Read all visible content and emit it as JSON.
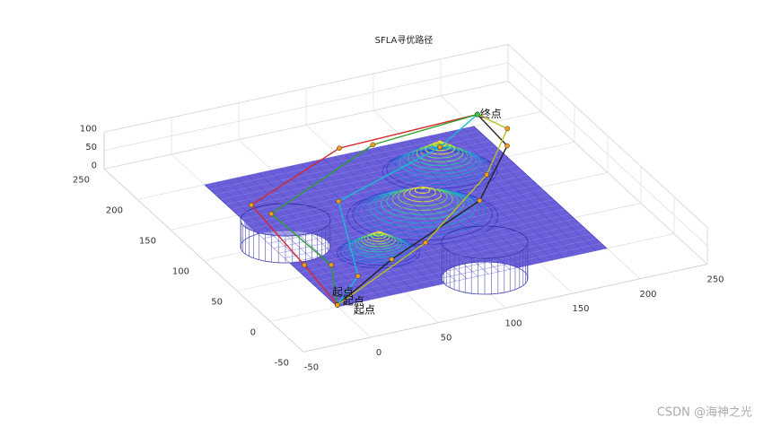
{
  "chart_data": {
    "type": "surface3d",
    "title": "SFLA寻优路径",
    "xlim": [
      -50,
      250
    ],
    "ylim": [
      -50,
      250
    ],
    "zlim": [
      0,
      100
    ],
    "xticks": [
      -50,
      0,
      50,
      100,
      150,
      200,
      250
    ],
    "yticks": [
      -50,
      0,
      50,
      100,
      150,
      200,
      250
    ],
    "zticks": [
      0,
      50,
      100
    ],
    "grid": true,
    "annotations": [
      "终点",
      "起点",
      "起点",
      "起点"
    ],
    "series": [
      {
        "color": "#d62728",
        "x": [
          0,
          5,
          10,
          100,
          205
        ],
        "y": [
          0,
          60,
          150,
          200,
          205
        ],
        "z": [
          5,
          10,
          20,
          20,
          20
        ]
      },
      {
        "color": "#2ca02c",
        "x": [
          0,
          20,
          15,
          120,
          205
        ],
        "y": [
          0,
          50,
          130,
          190,
          205
        ],
        "z": [
          5,
          15,
          25,
          30,
          20
        ]
      },
      {
        "color": "#222222",
        "x": [
          0,
          60,
          150,
          200,
          205
        ],
        "y": [
          0,
          40,
          90,
          150,
          205
        ],
        "z": [
          5,
          15,
          20,
          30,
          20
        ]
      },
      {
        "color": "#17becf",
        "x": [
          0,
          30,
          60,
          160,
          205
        ],
        "y": [
          0,
          30,
          120,
          170,
          205
        ],
        "z": [
          5,
          10,
          40,
          25,
          20
        ]
      },
      {
        "color": "#bcbd22",
        "x": [
          0,
          90,
          170,
          215,
          205
        ],
        "y": [
          0,
          50,
          120,
          180,
          205
        ],
        "z": [
          5,
          20,
          25,
          15,
          20
        ]
      }
    ]
  },
  "watermark": "CSDN @海神之光"
}
